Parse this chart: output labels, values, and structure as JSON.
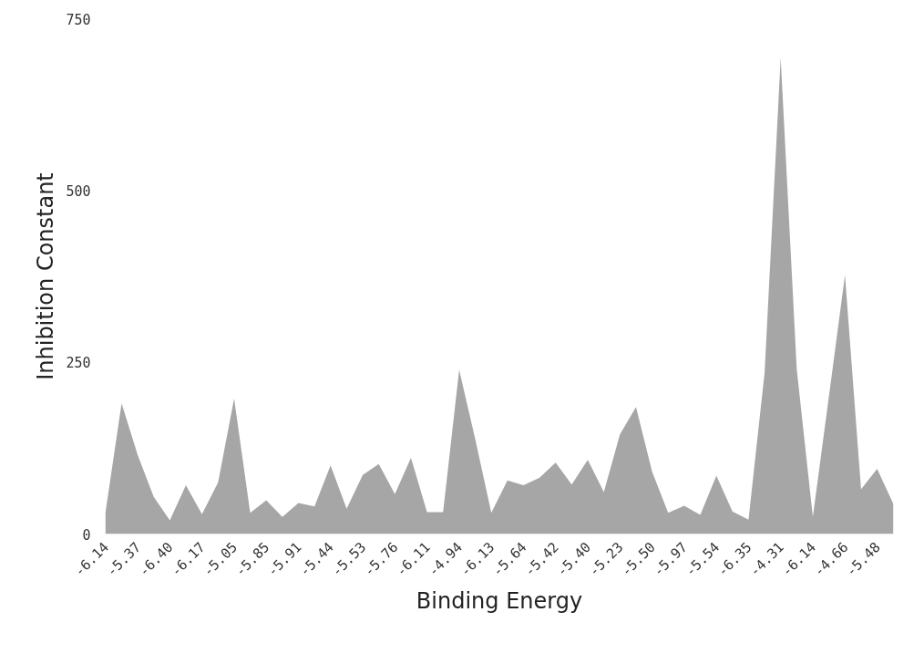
{
  "chart_data": {
    "type": "area",
    "xlabel": "Binding Energy",
    "ylabel": "Inhibition Constant",
    "categories": [
      "-6.14",
      null,
      "-5.37",
      null,
      "-6.40",
      null,
      "-6.17",
      null,
      "-5.05",
      null,
      "-5.85",
      null,
      "-5.91",
      null,
      "-5.44",
      null,
      "-5.53",
      null,
      "-5.76",
      null,
      "-6.11",
      null,
      "-4.94",
      null,
      "-6.13",
      null,
      "-5.64",
      null,
      "-5.42",
      null,
      "-5.40",
      null,
      "-5.23",
      null,
      "-5.50",
      null,
      "-5.97",
      null,
      "-5.54",
      null,
      "-6.35",
      null,
      "-4.31",
      null,
      "-6.14",
      null,
      "-4.66",
      null,
      "-5.48",
      null
    ],
    "series": [
      {
        "color": "#a6a6a6",
        "values": [
          32,
          190,
          115,
          54,
          20,
          71,
          29,
          75,
          197,
          31,
          49,
          25,
          45,
          40,
          100,
          37,
          86,
          102,
          58,
          111,
          32,
          32,
          239,
          138,
          31,
          78,
          71,
          82,
          104,
          72,
          108,
          61,
          145,
          185,
          91,
          31,
          41,
          28,
          85,
          33,
          21,
          235,
          693,
          240,
          25,
          200,
          377,
          65,
          95,
          44
        ]
      }
    ],
    "ylim": [
      0,
      750
    ],
    "yticks": [
      0,
      250,
      500,
      750
    ],
    "grid": false
  }
}
